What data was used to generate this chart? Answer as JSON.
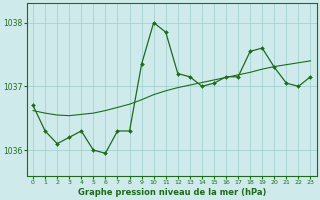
{
  "x": [
    0,
    1,
    2,
    3,
    4,
    5,
    6,
    7,
    8,
    9,
    10,
    11,
    12,
    13,
    14,
    15,
    16,
    17,
    18,
    19,
    20,
    21,
    22,
    23
  ],
  "y_main": [
    1036.7,
    1036.3,
    1036.1,
    1036.2,
    1036.3,
    1036.0,
    1035.95,
    1036.3,
    1036.3,
    1037.35,
    1038.0,
    1037.85,
    1037.2,
    1037.15,
    1037.0,
    1037.05,
    1037.15,
    1037.15,
    1037.55,
    1037.6,
    1037.3,
    1037.05,
    1037.0,
    1037.15
  ],
  "y_smooth": [
    1036.62,
    1036.58,
    1036.55,
    1036.54,
    1036.56,
    1036.58,
    1036.62,
    1036.67,
    1036.72,
    1036.79,
    1036.87,
    1036.93,
    1036.98,
    1037.02,
    1037.06,
    1037.1,
    1037.14,
    1037.18,
    1037.22,
    1037.27,
    1037.31,
    1037.34,
    1037.37,
    1037.4
  ],
  "ylim_min": 1035.6,
  "ylim_max": 1038.3,
  "yticks": [
    1036,
    1037,
    1038
  ],
  "xticks": [
    0,
    1,
    2,
    3,
    4,
    5,
    6,
    7,
    8,
    9,
    10,
    11,
    12,
    13,
    14,
    15,
    16,
    17,
    18,
    19,
    20,
    21,
    22,
    23
  ],
  "xlabel": "Graphe pression niveau de la mer (hPa)",
  "line_color": "#1e6b1e",
  "bg_color": "#ceeaea",
  "grid_color": "#9ecece",
  "markersize": 2.0,
  "lw_main": 0.9,
  "lw_smooth": 0.8
}
